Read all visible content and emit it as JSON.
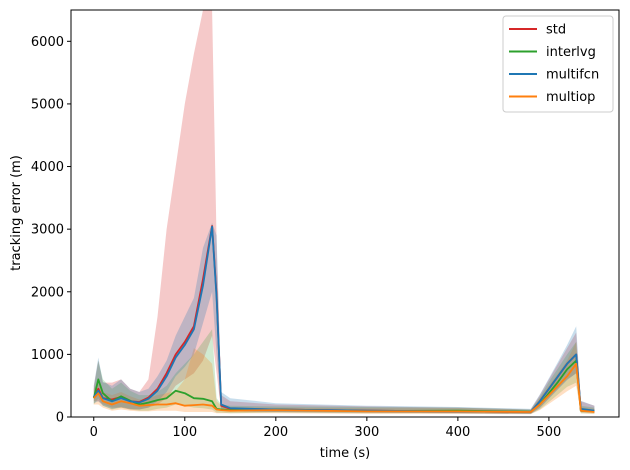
{
  "chart_data": {
    "type": "line",
    "title": "",
    "xlabel": "time (s)",
    "ylabel": "tracking error (m)",
    "xlim": [
      -25,
      577
    ],
    "ylim": [
      0,
      6500
    ],
    "xticks": [
      0,
      100,
      200,
      300,
      400,
      500
    ],
    "yticks": [
      0,
      1000,
      2000,
      3000,
      4000,
      5000,
      6000
    ],
    "grid": false,
    "legend_position": "top-right",
    "series": [
      {
        "name": "std",
        "color": "#d62728",
        "x": [
          0,
          5,
          10,
          20,
          30,
          40,
          50,
          60,
          70,
          80,
          90,
          100,
          110,
          120,
          130,
          135,
          140,
          150,
          200,
          300,
          400,
          480,
          490,
          500,
          510,
          520,
          530,
          535,
          550
        ],
        "y": [
          320,
          450,
          300,
          280,
          320,
          250,
          240,
          310,
          450,
          700,
          1000,
          1200,
          1450,
          2200,
          3050,
          1950,
          180,
          130,
          120,
          100,
          90,
          80,
          250,
          450,
          650,
          850,
          1000,
          120,
          100
        ],
        "band_upper": [
          500,
          900,
          550,
          550,
          600,
          450,
          400,
          600,
          1600,
          3000,
          4000,
          5000,
          5800,
          6500,
          6500,
          2800,
          350,
          250,
          200,
          170,
          150,
          120,
          350,
          600,
          850,
          1100,
          1350,
          250,
          180
        ],
        "band_lower": [
          250,
          250,
          200,
          150,
          150,
          120,
          120,
          150,
          200,
          300,
          500,
          600,
          700,
          900,
          1300,
          700,
          100,
          90,
          80,
          70,
          60,
          50,
          150,
          300,
          450,
          600,
          700,
          80,
          70
        ]
      },
      {
        "name": "interlvg",
        "color": "#2ca02c",
        "x": [
          0,
          5,
          10,
          20,
          30,
          40,
          50,
          60,
          70,
          80,
          90,
          100,
          110,
          120,
          130,
          135,
          140,
          150,
          200,
          300,
          400,
          480,
          490,
          500,
          510,
          520,
          530,
          535,
          550
        ],
        "y": [
          300,
          600,
          380,
          250,
          330,
          260,
          200,
          230,
          270,
          300,
          420,
          380,
          300,
          290,
          250,
          130,
          120,
          110,
          120,
          95,
          100,
          85,
          200,
          380,
          560,
          760,
          900,
          100,
          90
        ],
        "band_upper": [
          450,
          900,
          600,
          450,
          550,
          420,
          350,
          350,
          400,
          500,
          700,
          850,
          1000,
          1200,
          1400,
          300,
          200,
          180,
          170,
          160,
          150,
          120,
          320,
          560,
          780,
          1000,
          1200,
          180,
          150
        ],
        "band_lower": [
          200,
          300,
          180,
          120,
          150,
          120,
          100,
          100,
          130,
          150,
          200,
          180,
          150,
          140,
          120,
          70,
          70,
          60,
          70,
          60,
          60,
          50,
          120,
          240,
          360,
          480,
          550,
          60,
          55
        ]
      },
      {
        "name": "multifcn",
        "color": "#1f77b4",
        "x": [
          0,
          5,
          10,
          20,
          30,
          40,
          50,
          60,
          70,
          80,
          90,
          100,
          110,
          120,
          130,
          135,
          140,
          150,
          200,
          300,
          400,
          480,
          490,
          500,
          510,
          520,
          530,
          535,
          550
        ],
        "y": [
          320,
          420,
          300,
          250,
          300,
          250,
          230,
          290,
          420,
          650,
          950,
          1150,
          1400,
          2100,
          3040,
          1900,
          200,
          140,
          120,
          100,
          90,
          80,
          250,
          450,
          650,
          850,
          1000,
          130,
          100
        ],
        "band_upper": [
          500,
          950,
          560,
          500,
          600,
          450,
          400,
          450,
          650,
          900,
          1300,
          1600,
          1900,
          2700,
          3100,
          2900,
          400,
          300,
          220,
          180,
          160,
          130,
          360,
          620,
          880,
          1150,
          1450,
          260,
          180
        ],
        "band_lower": [
          220,
          250,
          180,
          130,
          160,
          130,
          120,
          150,
          250,
          400,
          650,
          800,
          1000,
          1500,
          2000,
          1000,
          100,
          90,
          80,
          70,
          60,
          50,
          140,
          290,
          440,
          590,
          700,
          80,
          70
        ]
      },
      {
        "name": "multiop",
        "color": "#ff7f0e",
        "x": [
          0,
          5,
          10,
          20,
          30,
          40,
          50,
          60,
          70,
          80,
          90,
          100,
          110,
          120,
          130,
          135,
          140,
          150,
          200,
          300,
          400,
          480,
          490,
          500,
          510,
          520,
          530,
          535,
          550
        ],
        "y": [
          300,
          380,
          250,
          200,
          250,
          220,
          180,
          190,
          200,
          200,
          220,
          180,
          190,
          200,
          180,
          120,
          110,
          100,
          110,
          90,
          90,
          80,
          200,
          350,
          500,
          650,
          850,
          100,
          80
        ],
        "band_upper": [
          450,
          550,
          400,
          350,
          400,
          330,
          280,
          300,
          350,
          380,
          420,
          600,
          1100,
          1000,
          850,
          250,
          180,
          160,
          150,
          140,
          140,
          110,
          300,
          500,
          700,
          900,
          1200,
          160,
          130
        ],
        "band_lower": [
          200,
          200,
          150,
          100,
          120,
          100,
          90,
          90,
          100,
          100,
          100,
          80,
          80,
          80,
          80,
          60,
          60,
          60,
          60,
          50,
          50,
          45,
          110,
          210,
          310,
          410,
          500,
          60,
          50
        ]
      }
    ]
  }
}
